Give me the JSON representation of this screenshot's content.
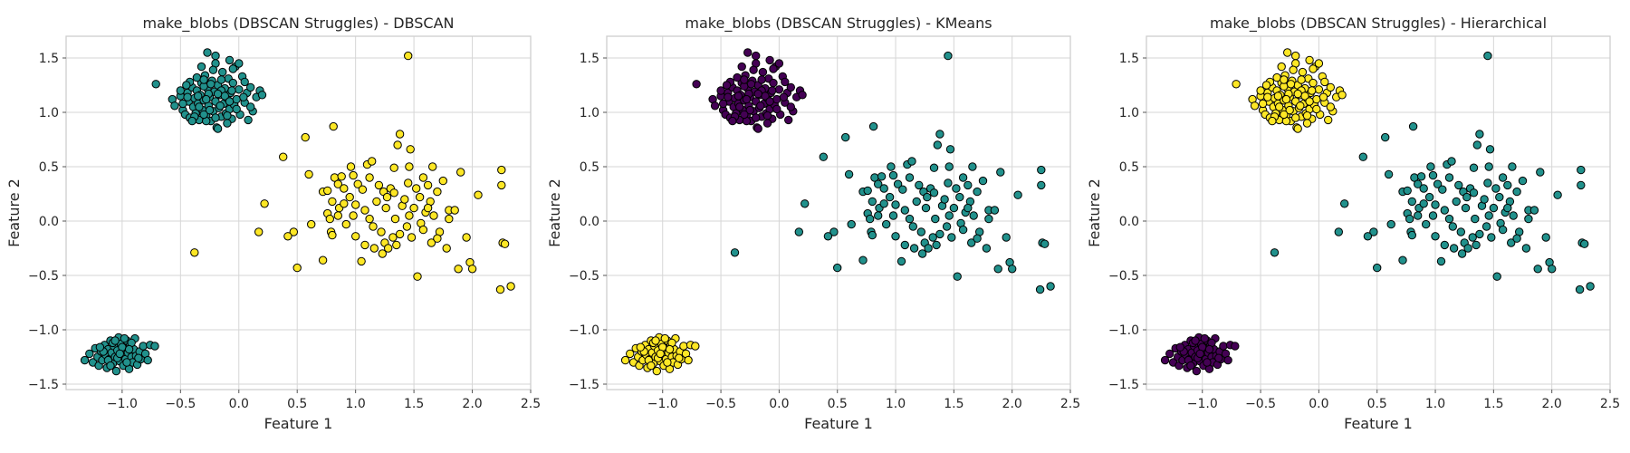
{
  "colors": {
    "c0": "#440154",
    "c1": "#21918c",
    "c2": "#fde725"
  },
  "chart_data": [
    {
      "type": "scatter",
      "title": "make_blobs (DBSCAN Struggles) - DBSCAN",
      "xlabel": "Feature 1",
      "ylabel": "Feature 2",
      "xlim": [
        -1.48,
        2.5
      ],
      "ylim": [
        -1.55,
        1.7
      ],
      "xticks": [
        -1.0,
        -0.5,
        0.0,
        0.5,
        1.0,
        1.5,
        2.0,
        2.5
      ],
      "xtick_labels": [
        "−1.0",
        "−0.5",
        "0.0",
        "0.5",
        "1.0",
        "1.5",
        "2.0",
        "2.5"
      ],
      "yticks": [
        -1.5,
        -1.0,
        -0.5,
        0.0,
        0.5,
        1.0,
        1.5
      ],
      "ytick_labels": [
        "−1.5",
        "−1.0",
        "−0.5",
        "0.0",
        "0.5",
        "1.0",
        "1.5"
      ],
      "grid": true,
      "labels": "A1B1C2"
    },
    {
      "type": "scatter",
      "title": "make_blobs (DBSCAN Struggles) - KMeans",
      "xlabel": "Feature 1",
      "ylabel": "Feature 2",
      "xlim": [
        -1.48,
        2.5
      ],
      "ylim": [
        -1.55,
        1.7
      ],
      "xticks": [
        -1.0,
        -0.5,
        0.0,
        0.5,
        1.0,
        1.5,
        2.0,
        2.5
      ],
      "xtick_labels": [
        "−1.0",
        "−0.5",
        "0.0",
        "0.5",
        "1.0",
        "1.5",
        "2.0",
        "2.5"
      ],
      "yticks": [
        -1.5,
        -1.0,
        -0.5,
        0.0,
        0.5,
        1.0,
        1.5
      ],
      "ytick_labels": [
        "−1.5",
        "−1.0",
        "−0.5",
        "0.0",
        "0.5",
        "1.0",
        "1.5"
      ],
      "grid": true,
      "labels": "A0B2C1"
    },
    {
      "type": "scatter",
      "title": "make_blobs (DBSCAN Struggles) - Hierarchical",
      "xlabel": "Feature 1",
      "ylabel": "Feature 2",
      "xlim": [
        -1.48,
        2.5
      ],
      "ylim": [
        -1.55,
        1.7
      ],
      "xticks": [
        -1.0,
        -0.5,
        0.0,
        0.5,
        1.0,
        1.5,
        2.0,
        2.5
      ],
      "xtick_labels": [
        "−1.0",
        "−0.5",
        "0.0",
        "0.5",
        "1.0",
        "1.5",
        "2.0",
        "2.5"
      ],
      "yticks": [
        -1.5,
        -1.0,
        -0.5,
        0.0,
        0.5,
        1.0,
        1.5
      ],
      "ytick_labels": [
        "−1.5",
        "−1.0",
        "−0.5",
        "0.0",
        "0.5",
        "1.0",
        "1.5"
      ],
      "grid": true,
      "labels": "A2B0C1"
    }
  ],
  "points": {
    "A": [
      [
        -0.71,
        1.26
      ],
      [
        -0.57,
        1.12
      ],
      [
        -0.55,
        1.06
      ],
      [
        -0.5,
        1.15
      ],
      [
        -0.48,
        1.02
      ],
      [
        -0.46,
        0.98
      ],
      [
        -0.44,
        1.18
      ],
      [
        -0.43,
        1.1
      ],
      [
        -0.42,
        0.95
      ],
      [
        -0.4,
        1.23
      ],
      [
        -0.39,
        1.05
      ],
      [
        -0.38,
        1.13
      ],
      [
        -0.37,
        0.99
      ],
      [
        -0.36,
        1.2
      ],
      [
        -0.35,
        1.08
      ],
      [
        -0.34,
        0.93
      ],
      [
        -0.33,
        1.16
      ],
      [
        -0.32,
        1.27
      ],
      [
        -0.31,
        1.02
      ],
      [
        -0.3,
        1.11
      ],
      [
        -0.29,
        1.34
      ],
      [
        -0.28,
        0.97
      ],
      [
        -0.27,
        1.22
      ],
      [
        -0.26,
        1.06
      ],
      [
        -0.25,
        1.14
      ],
      [
        -0.24,
        0.92
      ],
      [
        -0.23,
        1.29
      ],
      [
        -0.22,
        1.01
      ],
      [
        -0.21,
        1.19
      ],
      [
        -0.2,
        1.1
      ],
      [
        -0.19,
        0.86
      ],
      [
        -0.18,
        1.25
      ],
      [
        -0.17,
        1.04
      ],
      [
        -0.16,
        1.16
      ],
      [
        -0.15,
        0.96
      ],
      [
        -0.14,
        1.37
      ],
      [
        -0.13,
        1.08
      ],
      [
        -0.12,
        1.22
      ],
      [
        -0.11,
        0.99
      ],
      [
        -0.1,
        1.13
      ],
      [
        -0.09,
        1.31
      ],
      [
        -0.08,
        1.03
      ],
      [
        -0.07,
        1.18
      ],
      [
        -0.06,
        0.94
      ],
      [
        -0.05,
        1.27
      ],
      [
        -0.04,
        1.07
      ],
      [
        -0.03,
        1.42
      ],
      [
        -0.02,
        1.12
      ],
      [
        0.0,
        1.21
      ],
      [
        0.01,
        0.98
      ],
      [
        0.03,
        1.33
      ],
      [
        0.05,
        1.09
      ],
      [
        0.07,
        1.18
      ],
      [
        0.1,
        1.23
      ],
      [
        0.12,
        1.01
      ],
      [
        0.15,
        1.14
      ],
      [
        0.18,
        1.2
      ],
      [
        0.2,
        1.16
      ],
      [
        -0.27,
        1.55
      ],
      [
        -0.2,
        1.52
      ],
      [
        -0.32,
        1.42
      ],
      [
        -0.2,
        1.45
      ],
      [
        -0.08,
        1.48
      ],
      [
        0.0,
        1.45
      ],
      [
        -0.05,
        1.4
      ],
      [
        -0.42,
        1.28
      ],
      [
        -0.36,
        1.32
      ],
      [
        -0.3,
        1.24
      ],
      [
        -0.22,
        1.39
      ],
      [
        -0.15,
        1.3
      ],
      [
        -0.38,
        0.96
      ],
      [
        -0.28,
        0.92
      ],
      [
        -0.18,
        0.85
      ],
      [
        -0.1,
        0.9
      ],
      [
        -0.48,
        1.08
      ],
      [
        -0.35,
        1.15
      ],
      [
        -0.25,
        1.02
      ],
      [
        -0.15,
        1.2
      ],
      [
        -0.3,
        1.3
      ],
      [
        -0.12,
        1.15
      ],
      [
        0.08,
        0.93
      ],
      [
        -0.5,
        1.2
      ],
      [
        -0.45,
        1.25
      ],
      [
        -0.4,
        0.92
      ],
      [
        0.1,
        1.05
      ],
      [
        -0.02,
        1.03
      ],
      [
        -0.2,
        0.95
      ],
      [
        -0.26,
        1.17
      ],
      [
        -0.34,
        1.05
      ],
      [
        -0.24,
        1.26
      ],
      [
        -0.16,
        1.06
      ],
      [
        -0.06,
        1.2
      ],
      [
        0.04,
        1.14
      ],
      [
        -0.44,
        1.14
      ],
      [
        -0.28,
        1.12
      ],
      [
        -0.18,
        1.17
      ],
      [
        -0.08,
        1.1
      ],
      [
        -0.3,
        0.98
      ],
      [
        -0.1,
        0.97
      ],
      [
        0.05,
        1.28
      ]
    ],
    "B": [
      [
        -1.32,
        -1.28
      ],
      [
        -1.28,
        -1.22
      ],
      [
        -1.25,
        -1.3
      ],
      [
        -1.23,
        -1.17
      ],
      [
        -1.21,
        -1.25
      ],
      [
        -1.2,
        -1.33
      ],
      [
        -1.18,
        -1.2
      ],
      [
        -1.17,
        -1.28
      ],
      [
        -1.15,
        -1.14
      ],
      [
        -1.14,
        -1.23
      ],
      [
        -1.13,
        -1.35
      ],
      [
        -1.12,
        -1.18
      ],
      [
        -1.11,
        -1.27
      ],
      [
        -1.1,
        -1.1
      ],
      [
        -1.09,
        -1.21
      ],
      [
        -1.08,
        -1.31
      ],
      [
        -1.07,
        -1.15
      ],
      [
        -1.06,
        -1.25
      ],
      [
        -1.05,
        -1.38
      ],
      [
        -1.04,
        -1.19
      ],
      [
        -1.03,
        -1.07
      ],
      [
        -1.02,
        -1.29
      ],
      [
        -1.01,
        -1.13
      ],
      [
        -1.0,
        -1.23
      ],
      [
        -0.99,
        -1.33
      ],
      [
        -0.98,
        -1.17
      ],
      [
        -0.97,
        -1.27
      ],
      [
        -0.96,
        -1.1
      ],
      [
        -0.95,
        -1.21
      ],
      [
        -0.94,
        -1.36
      ],
      [
        -0.93,
        -1.14
      ],
      [
        -0.92,
        -1.25
      ],
      [
        -0.91,
        -1.3
      ],
      [
        -0.9,
        -1.18
      ],
      [
        -0.89,
        -1.08
      ],
      [
        -0.88,
        -1.24
      ],
      [
        -0.87,
        -1.32
      ],
      [
        -0.85,
        -1.2
      ],
      [
        -0.84,
        -1.27
      ],
      [
        -0.82,
        -1.15
      ],
      [
        -0.8,
        -1.22
      ],
      [
        -0.78,
        -1.28
      ],
      [
        -0.76,
        -1.14
      ],
      [
        -1.16,
        -1.2
      ],
      [
        -1.12,
        -1.28
      ],
      [
        -1.08,
        -1.12
      ],
      [
        -1.04,
        -1.26
      ],
      [
        -1.0,
        -1.16
      ],
      [
        -0.96,
        -1.3
      ],
      [
        -0.92,
        -1.12
      ],
      [
        -1.1,
        -1.33
      ],
      [
        -1.06,
        -1.1
      ],
      [
        -1.02,
        -1.22
      ],
      [
        -0.98,
        -1.08
      ],
      [
        -0.94,
        -1.18
      ],
      [
        -0.86,
        -1.26
      ],
      [
        -1.19,
        -1.16
      ],
      [
        -0.72,
        -1.15
      ]
    ],
    "C": [
      [
        1.45,
        1.52
      ],
      [
        -0.38,
        -0.29
      ],
      [
        0.38,
        0.59
      ],
      [
        0.57,
        0.77
      ],
      [
        0.81,
        0.87
      ],
      [
        0.22,
        0.16
      ],
      [
        0.17,
        -0.1
      ],
      [
        0.5,
        -0.43
      ],
      [
        0.47,
        -0.1
      ],
      [
        0.42,
        -0.14
      ],
      [
        0.6,
        0.43
      ],
      [
        0.62,
        -0.03
      ],
      [
        0.72,
        -0.36
      ],
      [
        0.72,
        0.27
      ],
      [
        0.76,
        0.28
      ],
      [
        0.76,
        0.07
      ],
      [
        0.78,
        0.02
      ],
      [
        0.79,
        -0.1
      ],
      [
        0.8,
        -0.13
      ],
      [
        0.8,
        0.18
      ],
      [
        0.82,
        0.4
      ],
      [
        0.85,
        0.34
      ],
      [
        0.86,
        0.12
      ],
      [
        0.88,
        0.41
      ],
      [
        0.9,
        0.16
      ],
      [
        0.92,
        -0.03
      ],
      [
        0.95,
        0.22
      ],
      [
        0.96,
        0.5
      ],
      [
        0.98,
        0.05
      ],
      [
        1.0,
        0.15
      ],
      [
        1.0,
        -0.14
      ],
      [
        1.02,
        0.34
      ],
      [
        1.05,
        -0.37
      ],
      [
        1.06,
        0.29
      ],
      [
        1.08,
        0.1
      ],
      [
        1.1,
        0.52
      ],
      [
        1.12,
        0.02
      ],
      [
        1.14,
        0.55
      ],
      [
        1.15,
        -0.05
      ],
      [
        1.16,
        -0.25
      ],
      [
        1.18,
        0.18
      ],
      [
        1.2,
        0.33
      ],
      [
        1.22,
        -0.1
      ],
      [
        1.24,
        0.27
      ],
      [
        1.25,
        -0.2
      ],
      [
        1.26,
        0.12
      ],
      [
        1.28,
        -0.25
      ],
      [
        1.3,
        0.3
      ],
      [
        1.32,
        -0.15
      ],
      [
        1.33,
        0.49
      ],
      [
        1.34,
        0.02
      ],
      [
        1.35,
        -0.22
      ],
      [
        1.36,
        0.7
      ],
      [
        1.38,
        0.8
      ],
      [
        1.38,
        -0.12
      ],
      [
        1.4,
        0.14
      ],
      [
        1.42,
        0.2
      ],
      [
        1.44,
        -0.05
      ],
      [
        1.45,
        0.35
      ],
      [
        1.46,
        0.5
      ],
      [
        1.47,
        0.66
      ],
      [
        1.48,
        -0.15
      ],
      [
        1.5,
        0.12
      ],
      [
        1.52,
        0.3
      ],
      [
        1.53,
        -0.51
      ],
      [
        1.55,
        0.22
      ],
      [
        1.56,
        -0.02
      ],
      [
        1.58,
        0.4
      ],
      [
        1.6,
        0.08
      ],
      [
        1.62,
        0.33
      ],
      [
        1.64,
        0.18
      ],
      [
        1.65,
        -0.2
      ],
      [
        1.66,
        0.5
      ],
      [
        1.67,
        0.05
      ],
      [
        1.7,
        0.27
      ],
      [
        1.72,
        -0.1
      ],
      [
        1.75,
        0.37
      ],
      [
        1.78,
        -0.25
      ],
      [
        1.8,
        0.1
      ],
      [
        1.85,
        0.1
      ],
      [
        1.88,
        -0.44
      ],
      [
        1.9,
        0.45
      ],
      [
        1.95,
        -0.15
      ],
      [
        1.98,
        -0.38
      ],
      [
        2.0,
        -0.44
      ],
      [
        2.05,
        0.24
      ],
      [
        2.25,
        0.47
      ],
      [
        2.25,
        0.33
      ],
      [
        2.26,
        -0.2
      ],
      [
        2.28,
        -0.21
      ],
      [
        2.24,
        -0.63
      ],
      [
        2.33,
        -0.6
      ],
      [
        1.23,
        -0.3
      ],
      [
        0.9,
        0.3
      ],
      [
        1.7,
        -0.16
      ],
      [
        1.12,
        0.4
      ],
      [
        1.46,
        0.05
      ],
      [
        1.33,
        0.26
      ],
      [
        1.58,
        -0.08
      ],
      [
        0.98,
        0.42
      ],
      [
        1.8,
        0.02
      ],
      [
        1.27,
        0.22
      ],
      [
        1.08,
        -0.22
      ],
      [
        0.85,
        0.05
      ],
      [
        1.62,
        0.12
      ]
    ]
  }
}
